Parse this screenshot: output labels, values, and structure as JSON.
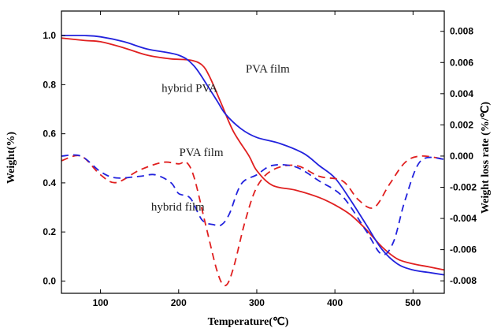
{
  "chart_data": {
    "type": "line",
    "xlabel": "Temperature(℃)",
    "ylabel": "Weight(%)",
    "y2label": "Weight loss rate (%/℃)",
    "xlim": [
      50,
      540
    ],
    "ylim": [
      -0.05,
      1.1
    ],
    "y2lim": [
      -0.0088,
      0.0093
    ],
    "x_ticks": [
      100,
      200,
      300,
      400,
      500
    ],
    "y_ticks": [
      0.0,
      0.2,
      0.4,
      0.6,
      0.8,
      1.0
    ],
    "y2_ticks": [
      -0.008,
      -0.006,
      -0.004,
      -0.002,
      0.0,
      0.002,
      0.004,
      0.006,
      0.008
    ],
    "x_tick_labels": [
      "100",
      "200",
      "300",
      "400",
      "500"
    ],
    "y_tick_labels": [
      "0.0",
      "0.2",
      "0.4",
      "0.6",
      "0.8",
      "1.0"
    ],
    "y2_tick_labels": [
      "-0.008",
      "-0.006",
      "-0.004",
      "-0.002",
      "0.000",
      "0.002",
      "0.004",
      "0.006",
      "0.008"
    ],
    "grid": false,
    "series": [
      {
        "color": "#e02020",
        "style": "solid",
        "axis": "left",
        "x": [
          50,
          80,
          100,
          130,
          160,
          190,
          215,
          230,
          240,
          255,
          270,
          290,
          300,
          320,
          350,
          380,
          400,
          420,
          440,
          460,
          480,
          500,
          520,
          540
        ],
        "y": [
          0.99,
          0.98,
          0.975,
          0.95,
          0.92,
          0.905,
          0.9,
          0.88,
          0.83,
          0.72,
          0.61,
          0.51,
          0.45,
          0.39,
          0.37,
          0.34,
          0.31,
          0.27,
          0.21,
          0.14,
          0.09,
          0.07,
          0.058,
          0.045
        ]
      },
      {
        "color": "#2222dd",
        "style": "solid",
        "axis": "left",
        "x": [
          50,
          80,
          100,
          130,
          160,
          200,
          220,
          240,
          250,
          260,
          280,
          300,
          330,
          360,
          380,
          400,
          420,
          440,
          460,
          480,
          500,
          520,
          540
        ],
        "y": [
          1.0,
          1.0,
          0.995,
          0.975,
          0.945,
          0.92,
          0.875,
          0.78,
          0.73,
          0.68,
          0.62,
          0.585,
          0.56,
          0.52,
          0.47,
          0.42,
          0.33,
          0.23,
          0.13,
          0.07,
          0.045,
          0.035,
          0.025
        ]
      },
      {
        "color": "#e02020",
        "style": "dashed",
        "axis": "right",
        "x": [
          50,
          75,
          100,
          120,
          150,
          180,
          200,
          210,
          220,
          235,
          250,
          260,
          270,
          285,
          300,
          320,
          350,
          380,
          410,
          430,
          450,
          470,
          490,
          510,
          540
        ],
        "y": [
          -0.0003,
          0.0,
          -0.0012,
          -0.0017,
          -0.0009,
          -0.0004,
          -0.0005,
          -0.0004,
          -0.0014,
          -0.0045,
          -0.0075,
          -0.0083,
          -0.0072,
          -0.0042,
          -0.002,
          -0.0009,
          -0.0006,
          -0.0013,
          -0.0016,
          -0.0028,
          -0.0033,
          -0.0018,
          -0.0004,
          0.0,
          -0.0002
        ]
      },
      {
        "color": "#2222dd",
        "style": "dashed",
        "axis": "right",
        "x": [
          50,
          75,
          100,
          120,
          150,
          170,
          190,
          200,
          215,
          230,
          245,
          255,
          265,
          280,
          300,
          320,
          350,
          380,
          410,
          440,
          460,
          475,
          490,
          510,
          540
        ],
        "y": [
          0.0,
          0.0,
          -0.001,
          -0.0014,
          -0.0013,
          -0.0012,
          -0.0017,
          -0.0024,
          -0.0027,
          -0.0041,
          -0.0044,
          -0.0044,
          -0.0037,
          -0.0018,
          -0.0012,
          -0.0006,
          -0.0007,
          -0.0016,
          -0.0026,
          -0.0048,
          -0.0063,
          -0.0055,
          -0.0028,
          -0.0003,
          -0.0002
        ]
      }
    ],
    "annotations": [
      {
        "text": "PVA film",
        "x": 314,
        "y": 0.85,
        "axis": "left"
      },
      {
        "text": "hybrid PVA",
        "x": 214,
        "y": 0.77,
        "axis": "left"
      },
      {
        "text": "PVA film",
        "x": 229,
        "y": 0.0,
        "axis": "right"
      },
      {
        "text": "hybrid film",
        "x": 199,
        "y": -0.0035,
        "axis": "right"
      }
    ]
  }
}
